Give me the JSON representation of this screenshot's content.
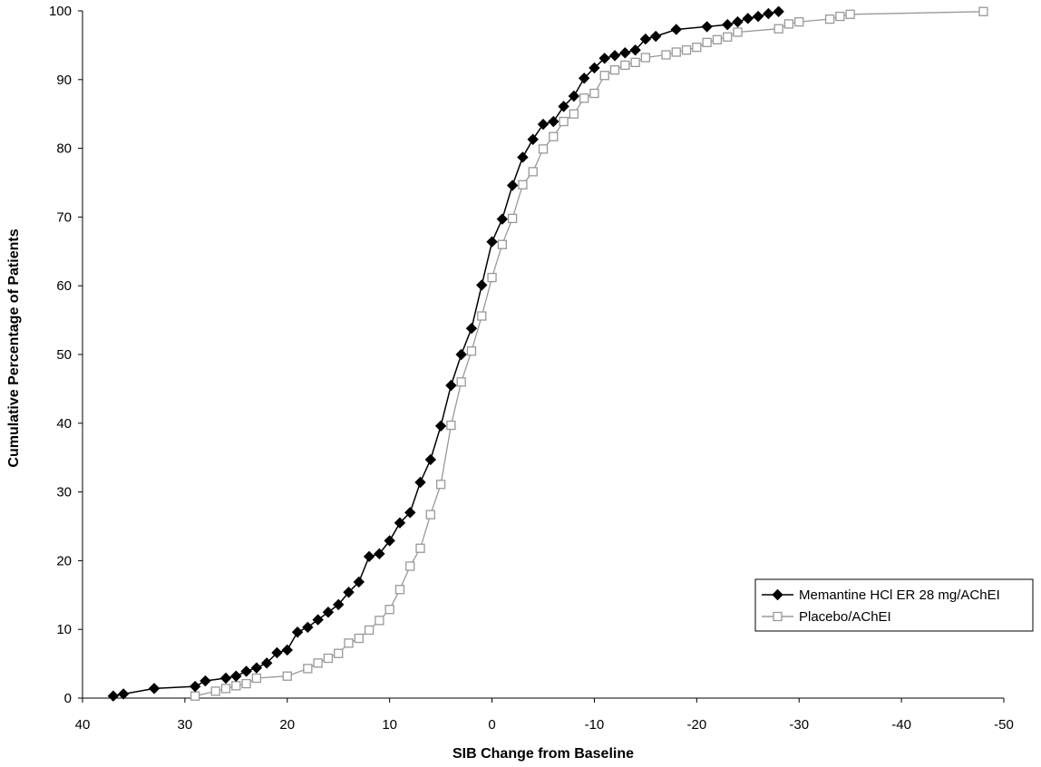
{
  "chart_data": {
    "type": "line",
    "title": "",
    "xlabel": "SIB Change from Baseline",
    "ylabel": "Cumulative Percentage of Patients",
    "xlim": [
      40,
      -50
    ],
    "ylim": [
      0,
      100
    ],
    "x_ticks": [
      40,
      30,
      20,
      10,
      0,
      -10,
      -20,
      -30,
      -40,
      -50
    ],
    "y_ticks": [
      0,
      10,
      20,
      30,
      40,
      50,
      60,
      70,
      80,
      90,
      100
    ],
    "x_reversed": true,
    "grid": false,
    "legend": "bottom-right",
    "series": [
      {
        "name": "Memantine HCl ER 28 mg/AChEI",
        "marker": "diamond-filled",
        "color": "#000000",
        "x": [
          37,
          36,
          33,
          29,
          28,
          26,
          25,
          24,
          23,
          22,
          21,
          20,
          19,
          18,
          17,
          16,
          15,
          14,
          13,
          12,
          11,
          10,
          9,
          8,
          7,
          6,
          5,
          4,
          3,
          2,
          1,
          0,
          -1,
          -2,
          -3,
          -4,
          -5,
          -6,
          -7,
          -8,
          -9,
          -10,
          -11,
          -12,
          -13,
          -14,
          -15,
          -16,
          -18,
          -21,
          -23,
          -24,
          -25,
          -26,
          -27,
          -28
        ],
        "y": [
          0.3,
          0.6,
          1.4,
          1.7,
          2.5,
          2.9,
          3.2,
          3.9,
          4.4,
          5.1,
          6.6,
          7.0,
          9.6,
          10.3,
          11.4,
          12.5,
          13.6,
          15.4,
          16.9,
          20.6,
          21.0,
          22.9,
          25.5,
          27.0,
          31.4,
          34.7,
          39.6,
          45.5,
          50.0,
          53.8,
          60.1,
          66.4,
          69.7,
          74.6,
          78.7,
          81.3,
          83.5,
          83.9,
          86.1,
          87.6,
          90.2,
          91.7,
          93.1,
          93.5,
          93.9,
          94.3,
          95.9,
          96.3,
          97.3,
          97.7,
          98.0,
          98.4,
          98.9,
          99.2,
          99.6,
          99.9
        ]
      },
      {
        "name": "Placebo/AChEI",
        "marker": "square-open",
        "color": "#999999",
        "x": [
          29,
          27,
          26,
          25,
          24,
          23,
          20,
          18,
          17,
          16,
          15,
          14,
          13,
          12,
          11,
          10,
          9,
          8,
          7,
          6,
          5,
          4,
          3,
          2,
          1,
          0,
          -1,
          -2,
          -3,
          -4,
          -5,
          -6,
          -7,
          -8,
          -9,
          -10,
          -11,
          -12,
          -13,
          -14,
          -15,
          -17,
          -18,
          -19,
          -20,
          -21,
          -22,
          -23,
          -24,
          -28,
          -29,
          -30,
          -33,
          -34,
          -35,
          -48
        ],
        "y": [
          0.3,
          1.0,
          1.4,
          1.8,
          2.1,
          2.9,
          3.2,
          4.3,
          5.1,
          5.8,
          6.5,
          8.0,
          8.7,
          9.9,
          11.3,
          12.9,
          15.8,
          19.2,
          21.8,
          26.7,
          31.1,
          39.7,
          46.0,
          50.5,
          55.6,
          61.2,
          66.0,
          69.8,
          74.7,
          76.6,
          79.9,
          81.7,
          83.9,
          85.0,
          87.3,
          88.0,
          90.6,
          91.4,
          92.1,
          92.5,
          93.2,
          93.6,
          94.0,
          94.3,
          94.7,
          95.4,
          95.8,
          96.2,
          96.9,
          97.4,
          98.1,
          98.4,
          98.8,
          99.2,
          99.5,
          99.9
        ]
      }
    ]
  }
}
